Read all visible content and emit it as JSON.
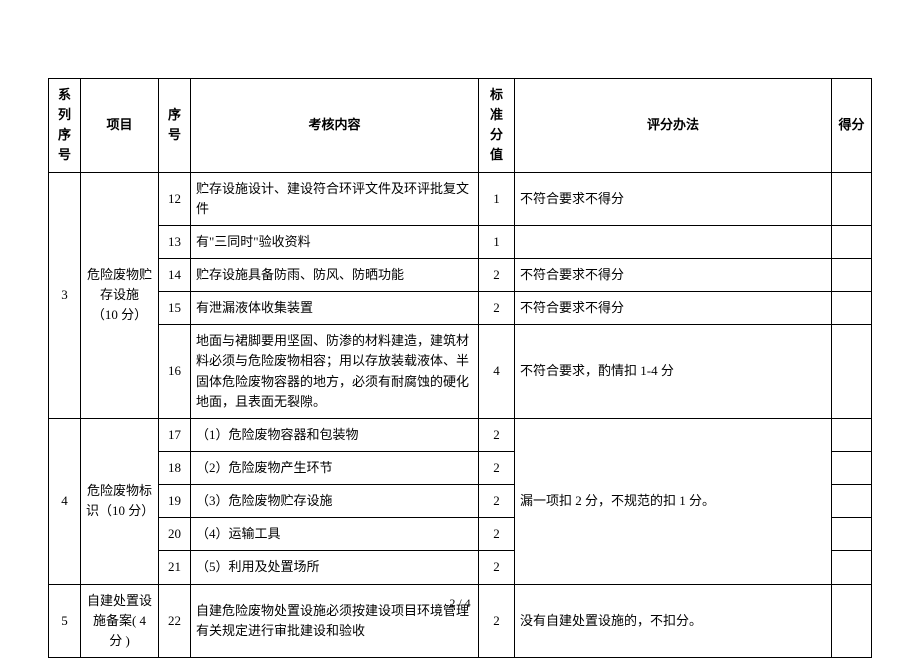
{
  "headers": {
    "series": "系列\n序号",
    "project": "项目",
    "seq": "序\n号",
    "content": "考核内容",
    "std": "标准\n分值",
    "method": "评分办法",
    "score": "得分"
  },
  "groups": [
    {
      "series": "3",
      "project": "危险废物贮存设施\n（10 分）",
      "rows": [
        {
          "seq": "12",
          "content": "贮存设施设计、建设符合环评文件及环评批复文件",
          "std": "1",
          "method": "不符合要求不得分"
        },
        {
          "seq": "13",
          "content": "有\"三同时\"验收资料",
          "std": "1",
          "method": ""
        },
        {
          "seq": "14",
          "content": "贮存设施具备防雨、防风、防晒功能",
          "std": "2",
          "method": "不符合要求不得分"
        },
        {
          "seq": "15",
          "content": "有泄漏液体收集装置",
          "std": "2",
          "method": "不符合要求不得分"
        },
        {
          "seq": "16",
          "content": "地面与裙脚要用坚固、防渗的材料建造，建筑材料必须与危险废物相容；用以存放装载液体、半固体危险废物容器的地方，必须有耐腐蚀的硬化地面，且表面无裂隙。",
          "std": "4",
          "method": "不符合要求，酌情扣 1-4 分"
        }
      ]
    },
    {
      "series": "4",
      "project": "危险废物标识（10 分）",
      "methodMerged": "漏一项扣 2 分，不规范的扣 1 分。",
      "rows": [
        {
          "seq": "17",
          "content": "（1）危险废物容器和包装物",
          "std": "2"
        },
        {
          "seq": "18",
          "content": "（2）危险废物产生环节",
          "std": "2"
        },
        {
          "seq": "19",
          "content": "（3）危险废物贮存设施",
          "std": "2"
        },
        {
          "seq": "20",
          "content": "（4）运输工具",
          "std": "2"
        },
        {
          "seq": "21",
          "content": "（5）利用及处置场所",
          "std": "2"
        }
      ]
    },
    {
      "series": "5",
      "project": "自建处置设施备案( 4 分 )",
      "rows": [
        {
          "seq": "22",
          "content": "自建危险废物处置设施必须按建设项目环境管理有关规定进行审批建设和验收",
          "std": "2",
          "method": "没有自建处置设施的，不扣分。"
        }
      ]
    }
  ],
  "footer": "2 / 4"
}
